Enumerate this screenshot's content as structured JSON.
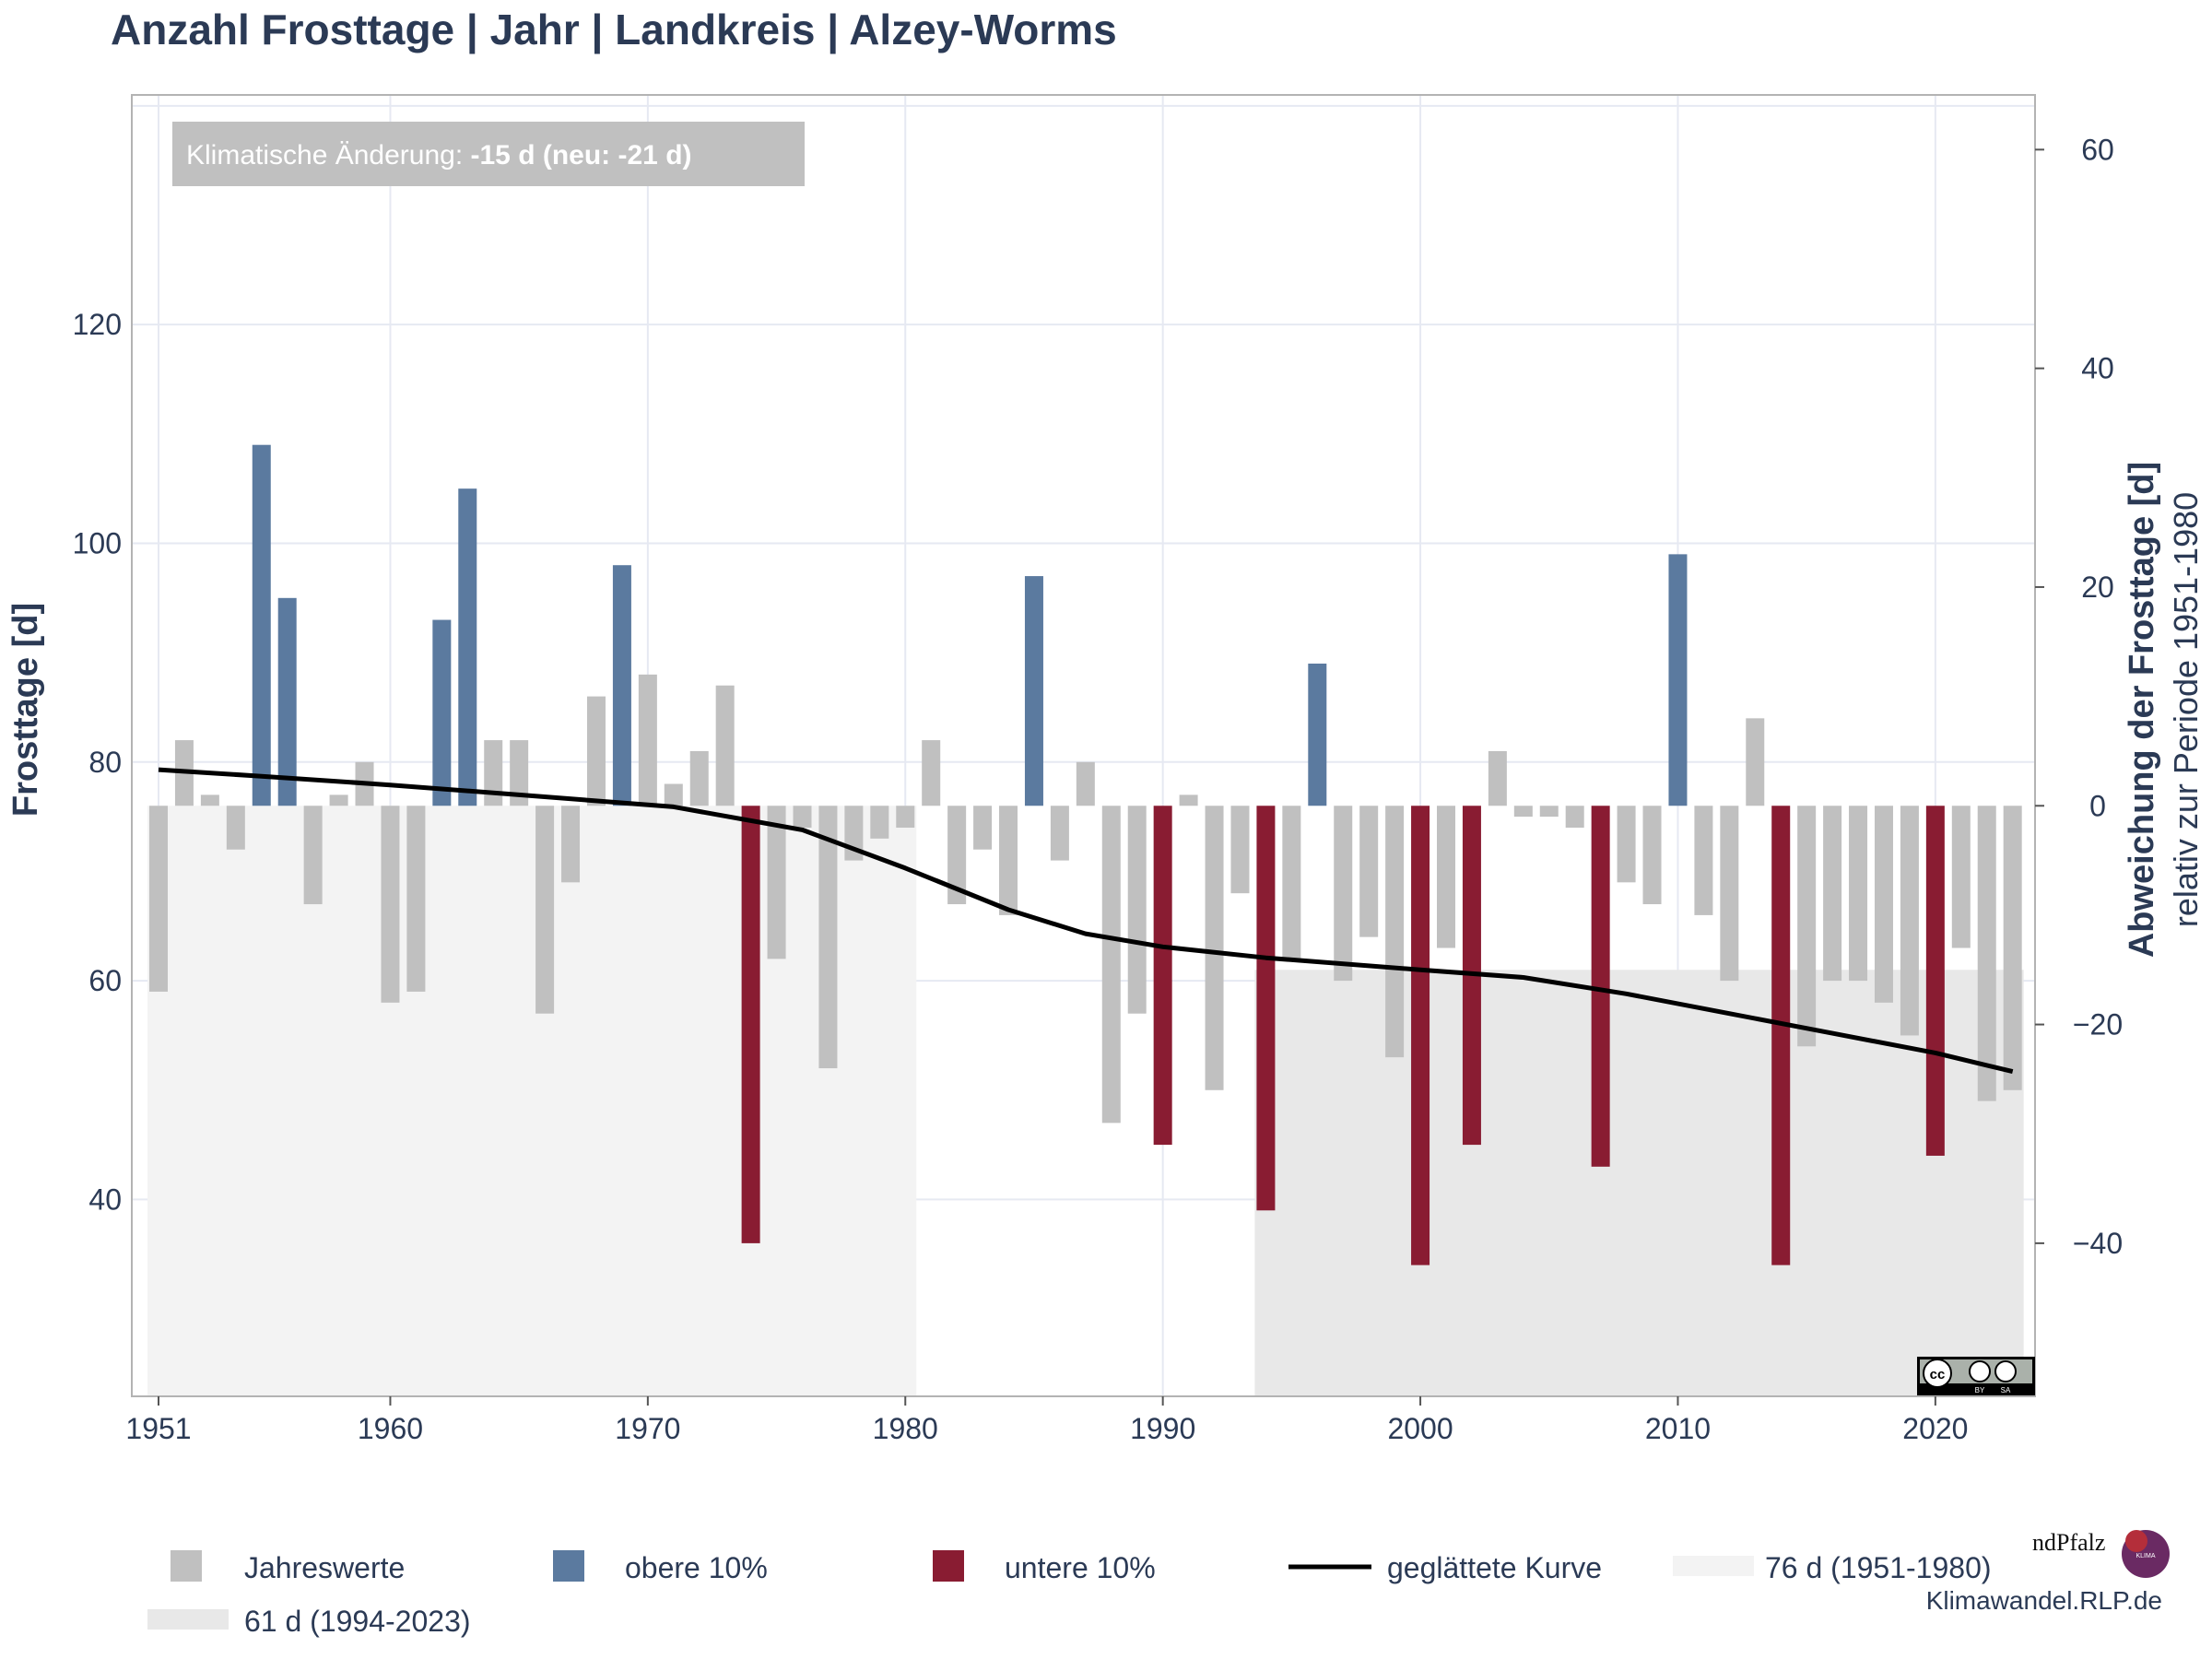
{
  "chart_data": {
    "type": "bar",
    "title": "Anzahl Frosttage | Jahr | Landkreis | Alzey-Worms",
    "ylabel": "Frosttage [d]",
    "y2label": "Abweichung der Frosttage [d]",
    "y2sublabel": "relativ zur Periode 1951-1980",
    "annotation": {
      "prefix": "Klimatische Änderung: ",
      "value": "-15 d (neu: -21 d)"
    },
    "reference_value": 76,
    "ylim": [
      22,
      141
    ],
    "y2lim": [
      -54,
      65
    ],
    "x_ticks": [
      "1951",
      "1960",
      "1970",
      "1980",
      "1990",
      "2000",
      "2010",
      "2020"
    ],
    "y_ticks": [
      "40",
      "60",
      "80",
      "100",
      "120"
    ],
    "y2_ticks": [
      "−40",
      "−20",
      "0",
      "20",
      "40",
      "60"
    ],
    "years": [
      1951,
      1952,
      1953,
      1954,
      1955,
      1956,
      1957,
      1958,
      1959,
      1960,
      1961,
      1962,
      1963,
      1964,
      1965,
      1966,
      1967,
      1968,
      1969,
      1970,
      1971,
      1972,
      1973,
      1974,
      1975,
      1976,
      1977,
      1978,
      1979,
      1980,
      1981,
      1982,
      1983,
      1984,
      1985,
      1986,
      1987,
      1988,
      1989,
      1990,
      1991,
      1992,
      1993,
      1994,
      1995,
      1996,
      1997,
      1998,
      1999,
      2000,
      2001,
      2002,
      2003,
      2004,
      2005,
      2006,
      2007,
      2008,
      2009,
      2010,
      2011,
      2012,
      2013,
      2014,
      2015,
      2016,
      2017,
      2018,
      2019,
      2020,
      2021,
      2022,
      2023
    ],
    "values": [
      59,
      82,
      77,
      72,
      109,
      95,
      67,
      77,
      80,
      58,
      59,
      93,
      105,
      82,
      82,
      57,
      69,
      86,
      98,
      88,
      78,
      81,
      87,
      36,
      62,
      74,
      52,
      71,
      73,
      74,
      82,
      67,
      72,
      66,
      97,
      71,
      80,
      47,
      57,
      45,
      77,
      50,
      68,
      39,
      62,
      89,
      60,
      64,
      53,
      34,
      63,
      45,
      81,
      75,
      75,
      74,
      43,
      69,
      67,
      99,
      66,
      60,
      84,
      34,
      54,
      60,
      60,
      58,
      55,
      44,
      63,
      49,
      50
    ],
    "categories": [
      "gray",
      "gray",
      "gray",
      "gray",
      "blue",
      "blue",
      "gray",
      "gray",
      "gray",
      "gray",
      "gray",
      "blue",
      "blue",
      "gray",
      "gray",
      "gray",
      "gray",
      "gray",
      "blue",
      "gray",
      "gray",
      "gray",
      "gray",
      "red",
      "gray",
      "gray",
      "gray",
      "gray",
      "gray",
      "gray",
      "gray",
      "gray",
      "gray",
      "gray",
      "blue",
      "gray",
      "gray",
      "gray",
      "gray",
      "red",
      "gray",
      "gray",
      "gray",
      "red",
      "gray",
      "blue",
      "gray",
      "gray",
      "gray",
      "red",
      "gray",
      "red",
      "gray",
      "gray",
      "gray",
      "gray",
      "red",
      "gray",
      "gray",
      "blue",
      "gray",
      "gray",
      "gray",
      "red",
      "gray",
      "gray",
      "gray",
      "gray",
      "gray",
      "red",
      "gray",
      "gray",
      "gray"
    ],
    "smoothed_curve": {
      "x": [
        1951,
        1955,
        1960,
        1965,
        1971,
        1976,
        1980,
        1984,
        1987,
        1990,
        1994,
        2000,
        2004,
        2008,
        2012,
        2016,
        2020,
        2023
      ],
      "y": [
        79.3,
        78.7,
        77.9,
        77.0,
        75.9,
        73.8,
        70.3,
        66.5,
        64.3,
        63.1,
        62.1,
        61.0,
        60.3,
        58.8,
        57.0,
        55.2,
        53.4,
        51.7
      ]
    },
    "periods": [
      {
        "label": "76 d (1951-1980)",
        "value": 76,
        "start": 1951,
        "end": 1980
      },
      {
        "label": "61 d (1994-2023)",
        "value": 61,
        "start": 1994,
        "end": 2023
      }
    ],
    "colors": {
      "gray": "#c0c0c0",
      "blue": "#5b7a9f",
      "red": "#891c32",
      "curve": "#000000",
      "period1": "#f3f3f3",
      "period2": "#e8e8e8",
      "text": "#2b3a55"
    },
    "legend": [
      {
        "label": "Jahreswerte",
        "kind": "gray"
      },
      {
        "label": "obere 10%",
        "kind": "blue"
      },
      {
        "label": "untere 10%",
        "kind": "red"
      },
      {
        "label": "geglättete Kurve",
        "kind": "line"
      },
      {
        "label": "76 d (1951-1980)",
        "kind": "period1"
      },
      {
        "label": "61 d (1994-2023)",
        "kind": "period2"
      }
    ],
    "grid": true,
    "legend_position": "bottom"
  },
  "footer": {
    "website": "Klimawandel.RLP.de",
    "logo_text": "ndPfalz",
    "badge_text": "KLIMA FOLGEN ANPASSUNG",
    "license": "CC BY SA"
  }
}
